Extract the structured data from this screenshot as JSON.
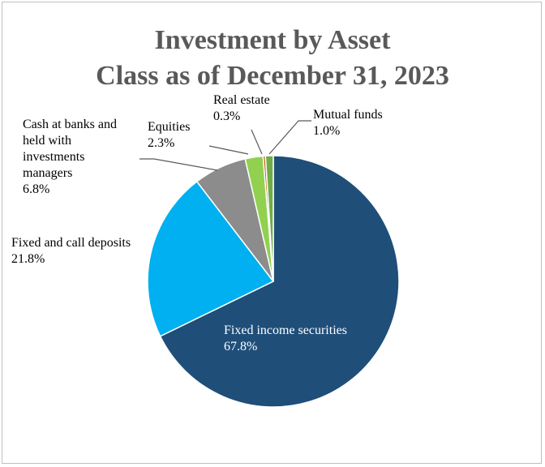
{
  "chart_data": {
    "type": "pie",
    "title": "Investment by Asset Class as of December 31, 2023",
    "title_lines": [
      "Investment by Asset",
      "Class as of December 31, 2023"
    ],
    "slices": [
      {
        "label": "Fixed income securities",
        "label_lines": [
          "Fixed income securities"
        ],
        "value": 67.8,
        "value_text": "67.8%",
        "color": "#1f4e79"
      },
      {
        "label": "Fixed and call deposits",
        "label_lines": [
          "Fixed and call deposits"
        ],
        "value": 21.8,
        "value_text": "21.8%",
        "color": "#00b0f0"
      },
      {
        "label": "Cash at banks and held with investments managers",
        "label_lines": [
          "Cash at banks and",
          "held with",
          "investments",
          "managers"
        ],
        "value": 6.8,
        "value_text": "6.8%",
        "color": "#8c8c8c"
      },
      {
        "label": "Equities",
        "label_lines": [
          "Equities"
        ],
        "value": 2.3,
        "value_text": "2.3%",
        "color": "#92d050"
      },
      {
        "label": "Real estate",
        "label_lines": [
          "Real estate"
        ],
        "value": 0.3,
        "value_text": "0.3%",
        "color": "#c55a11"
      },
      {
        "label": "Mutual funds",
        "label_lines": [
          "Mutual funds"
        ],
        "value": 1.0,
        "value_text": "1.0%",
        "color": "#70ad47"
      }
    ],
    "slice_border_color": "#ffffff",
    "leader_line_color": "#595959",
    "legend": "none"
  }
}
